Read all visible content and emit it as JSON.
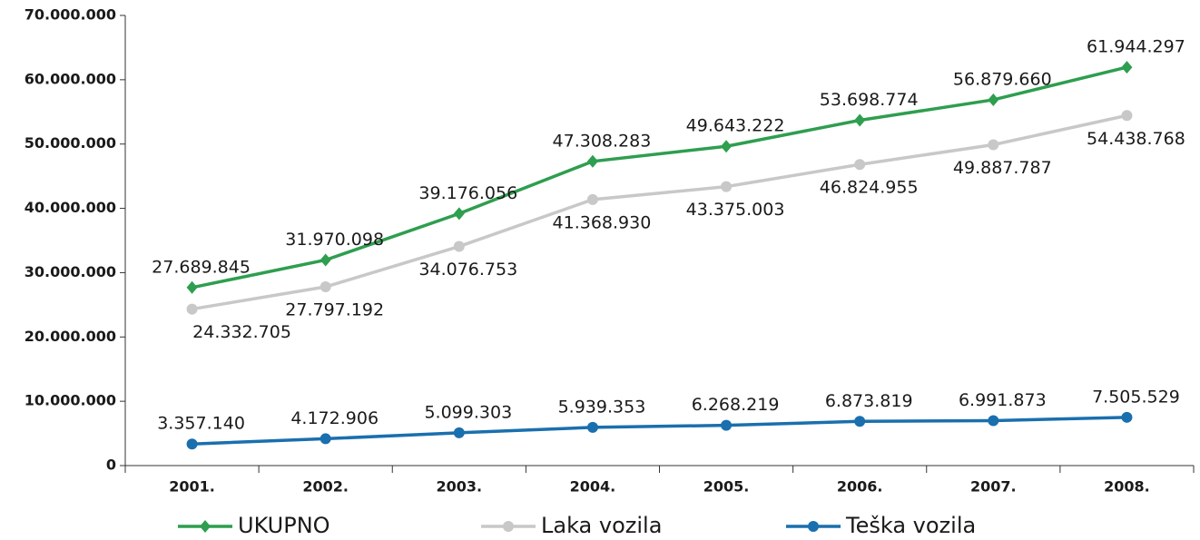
{
  "chart_data": {
    "type": "line",
    "categories": [
      "2001.",
      "2002.",
      "2003.",
      "2004.",
      "2005.",
      "2006.",
      "2007.",
      "2008."
    ],
    "series": [
      {
        "name": "UKUPNO",
        "color": "#2e9e4f",
        "marker": "diamond",
        "values": [
          27689845,
          31970098,
          39176056,
          47308283,
          49643222,
          53698774,
          56879660,
          61944297
        ],
        "value_labels": [
          "27.689.845",
          "31.970.098",
          "39.176.056",
          "47.308.283",
          "49.643.222",
          "53.698.774",
          "56.879.660",
          "61.944.297"
        ]
      },
      {
        "name": "Laka vozila",
        "color": "#c8c8c8",
        "marker": "circle",
        "values": [
          24332705,
          27797192,
          34076753,
          41368930,
          43375003,
          46824955,
          49887787,
          54438768
        ],
        "value_labels": [
          "24.332.705",
          "27.797.192",
          "34.076.753",
          "41.368.930",
          "43.375.003",
          "46.824.955",
          "49.887.787",
          "54.438.768"
        ]
      },
      {
        "name": "Teška vozila",
        "color": "#1a6fae",
        "marker": "circle",
        "values": [
          3357140,
          4172906,
          5099303,
          5939353,
          6268219,
          6873819,
          6991873,
          7505529
        ],
        "value_labels": [
          "3.357.140",
          "4.172.906",
          "5.099.303",
          "5.939.353",
          "6.268.219",
          "6.873.819",
          "6.991.873",
          "7.505.529"
        ]
      }
    ],
    "ylim": [
      0,
      70000000
    ],
    "yticks": [
      0,
      {
        "value": 10000000,
        "label": "10.000.000"
      },
      {
        "value": 20000000,
        "label": "20.000.000"
      },
      {
        "value": 30000000,
        "label": "30.000.000"
      },
      {
        "value": 40000000,
        "label": "40.000.000"
      },
      {
        "value": 50000000,
        "label": "50.000.000"
      },
      {
        "value": 60000000,
        "label": "60.000.000"
      },
      {
        "value": 70000000,
        "label": "70.000.000"
      }
    ],
    "grid": false,
    "legend": "bottom"
  }
}
